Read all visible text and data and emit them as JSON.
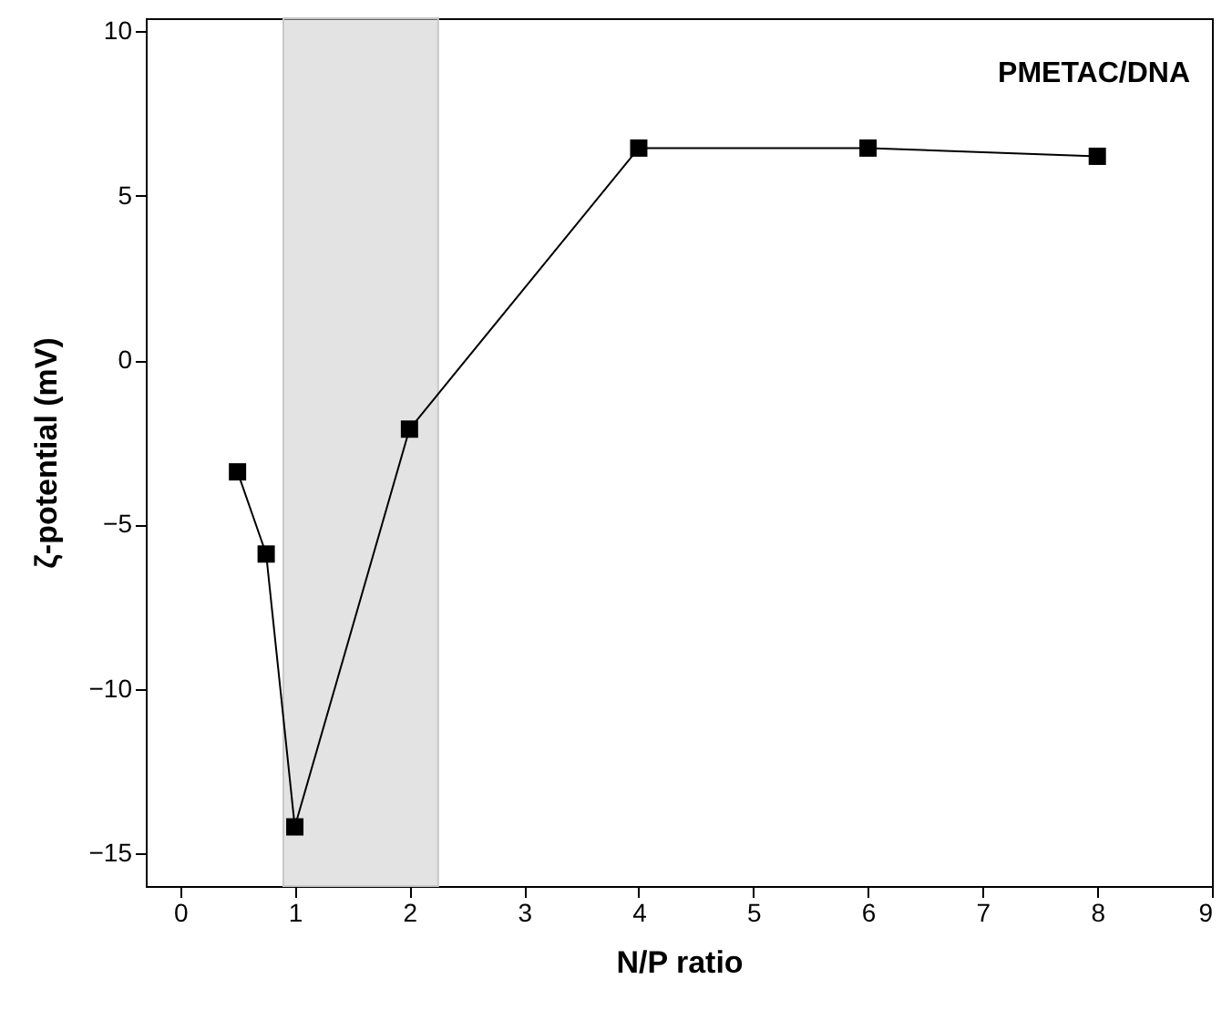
{
  "chart_data": {
    "type": "line",
    "xlabel": "N/P ratio",
    "ylabel": "ζ-potential (mV)",
    "x": [
      0.5,
      0.75,
      1,
      2,
      4,
      6,
      8
    ],
    "series": [
      {
        "color": "#000000",
        "values": [
          -3.4,
          -5.9,
          -14.2,
          -2.1,
          6.45,
          6.45,
          6.2
        ]
      }
    ],
    "xlim": [
      -0.3,
      9
    ],
    "xticks": [
      0,
      1,
      2,
      3,
      4,
      5,
      6,
      7,
      8,
      9
    ],
    "ylim": [
      -16,
      10.4
    ],
    "yticks": [
      -15,
      -10,
      -5,
      0,
      5,
      10
    ],
    "bands": [
      {
        "axis": "x",
        "from": 0.9,
        "to": 2.25,
        "color": "#c8c8c8"
      }
    ],
    "annotations": [
      "PMETAC/DNA"
    ],
    "marker": "square",
    "line_style": "solid",
    "grid": false
  }
}
